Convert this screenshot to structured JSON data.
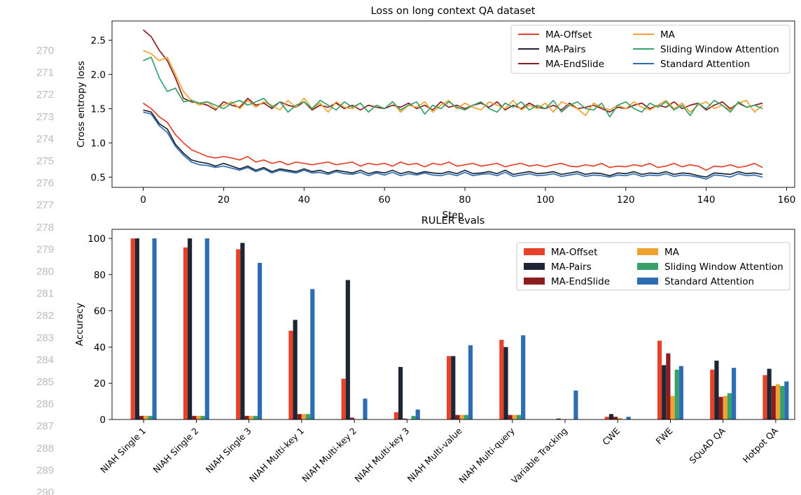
{
  "line_numbers": [
    "270",
    "271",
    "272",
    "273",
    "274",
    "275",
    "276",
    "277",
    "278",
    "279",
    "280",
    "281",
    "282",
    "283",
    "284",
    "285",
    "286",
    "287",
    "288",
    "289",
    "290"
  ],
  "chart_data": [
    {
      "type": "line",
      "title": "Loss on long context QA dataset",
      "xlabel": "Step",
      "ylabel": "Cross entropy loss",
      "xlim": [
        -7.75,
        162
      ],
      "ylim": [
        0.35,
        2.78
      ],
      "xticks": [
        0,
        20,
        40,
        60,
        80,
        100,
        120,
        140,
        160
      ],
      "xtick_labels": [
        "0",
        "20",
        "40",
        "60",
        "80",
        "100",
        "120",
        "140",
        "160"
      ],
      "yticks": [
        0.5,
        1.0,
        1.5,
        2.0,
        2.5
      ],
      "ytick_labels": [
        "0.5",
        "1.0",
        "1.5",
        "2.0",
        "2.5"
      ],
      "grid": false,
      "legend": "top-right",
      "legend_columns": 2,
      "x": [
        0,
        2,
        4,
        6,
        8,
        10,
        12,
        14,
        16,
        18,
        20,
        22,
        24,
        26,
        28,
        30,
        32,
        34,
        36,
        38,
        40,
        42,
        44,
        46,
        48,
        50,
        52,
        54,
        56,
        58,
        60,
        62,
        64,
        66,
        68,
        70,
        72,
        74,
        76,
        78,
        80,
        82,
        84,
        86,
        88,
        90,
        92,
        94,
        96,
        98,
        100,
        102,
        104,
        106,
        108,
        110,
        112,
        114,
        116,
        118,
        120,
        122,
        124,
        126,
        128,
        130,
        132,
        134,
        136,
        138,
        140,
        142,
        144,
        146,
        148,
        150,
        152,
        154
      ],
      "series": [
        {
          "name": "MA-Offset",
          "color": "#e8412a",
          "values": [
            1.58,
            1.5,
            1.38,
            1.3,
            1.12,
            1.0,
            0.9,
            0.85,
            0.8,
            0.78,
            0.8,
            0.78,
            0.75,
            0.8,
            0.72,
            0.75,
            0.7,
            0.73,
            0.68,
            0.72,
            0.7,
            0.68,
            0.7,
            0.72,
            0.68,
            0.7,
            0.72,
            0.66,
            0.7,
            0.68,
            0.7,
            0.66,
            0.72,
            0.68,
            0.7,
            0.65,
            0.7,
            0.68,
            0.72,
            0.66,
            0.68,
            0.7,
            0.66,
            0.68,
            0.7,
            0.65,
            0.68,
            0.7,
            0.66,
            0.68,
            0.65,
            0.68,
            0.7,
            0.66,
            0.65,
            0.68,
            0.66,
            0.7,
            0.64,
            0.66,
            0.65,
            0.68,
            0.66,
            0.7,
            0.64,
            0.66,
            0.7,
            0.65,
            0.68,
            0.66,
            0.6,
            0.66,
            0.65,
            0.68,
            0.64,
            0.66,
            0.7,
            0.64
          ]
        },
        {
          "name": "MA-Pairs",
          "color": "#1c2634",
          "values": [
            1.48,
            1.45,
            1.28,
            1.2,
            0.98,
            0.85,
            0.75,
            0.72,
            0.7,
            0.66,
            0.7,
            0.66,
            0.62,
            0.66,
            0.6,
            0.64,
            0.58,
            0.62,
            0.6,
            0.58,
            0.62,
            0.58,
            0.6,
            0.56,
            0.6,
            0.58,
            0.56,
            0.6,
            0.55,
            0.58,
            0.56,
            0.6,
            0.55,
            0.58,
            0.55,
            0.58,
            0.56,
            0.55,
            0.58,
            0.55,
            0.6,
            0.55,
            0.56,
            0.58,
            0.55,
            0.6,
            0.54,
            0.56,
            0.58,
            0.55,
            0.56,
            0.58,
            0.54,
            0.56,
            0.58,
            0.54,
            0.56,
            0.55,
            0.52,
            0.56,
            0.55,
            0.58,
            0.54,
            0.56,
            0.55,
            0.58,
            0.54,
            0.56,
            0.55,
            0.52,
            0.5,
            0.56,
            0.55,
            0.54,
            0.58,
            0.55,
            0.56,
            0.54
          ]
        },
        {
          "name": "MA-EndSlide",
          "color": "#8b1c1f",
          "values": [
            2.65,
            2.55,
            2.35,
            2.2,
            1.95,
            1.65,
            1.6,
            1.58,
            1.55,
            1.48,
            1.6,
            1.55,
            1.52,
            1.65,
            1.55,
            1.58,
            1.5,
            1.6,
            1.55,
            1.52,
            1.6,
            1.48,
            1.55,
            1.52,
            1.58,
            1.5,
            1.55,
            1.48,
            1.55,
            1.52,
            1.5,
            1.55,
            1.52,
            1.58,
            1.5,
            1.55,
            1.48,
            1.6,
            1.52,
            1.55,
            1.5,
            1.55,
            1.58,
            1.52,
            1.6,
            1.48,
            1.55,
            1.5,
            1.58,
            1.52,
            1.5,
            1.55,
            1.48,
            1.58,
            1.5,
            1.52,
            1.55,
            1.5,
            1.45,
            1.52,
            1.5,
            1.55,
            1.58,
            1.5,
            1.55,
            1.52,
            1.6,
            1.5,
            1.55,
            1.58,
            1.48,
            1.55,
            1.6,
            1.5,
            1.58,
            1.52,
            1.55,
            1.58
          ]
        },
        {
          "name": "MA",
          "color": "#f0a232",
          "values": [
            2.35,
            2.3,
            2.2,
            2.25,
            2.0,
            1.75,
            1.62,
            1.55,
            1.6,
            1.5,
            1.55,
            1.6,
            1.5,
            1.62,
            1.52,
            1.6,
            1.55,
            1.48,
            1.62,
            1.52,
            1.65,
            1.5,
            1.58,
            1.45,
            1.6,
            1.52,
            1.5,
            1.58,
            1.45,
            1.55,
            1.5,
            1.6,
            1.45,
            1.55,
            1.52,
            1.6,
            1.45,
            1.55,
            1.62,
            1.5,
            1.58,
            1.52,
            1.48,
            1.6,
            1.55,
            1.5,
            1.62,
            1.48,
            1.55,
            1.5,
            1.58,
            1.45,
            1.6,
            1.55,
            1.5,
            1.4,
            1.58,
            1.52,
            1.48,
            1.55,
            1.5,
            1.6,
            1.52,
            1.48,
            1.55,
            1.62,
            1.5,
            1.58,
            1.45,
            1.55,
            1.6,
            1.5,
            1.55,
            1.48,
            1.58,
            1.62,
            1.45,
            1.55
          ]
        },
        {
          "name": "Sliding Window Attention",
          "color": "#37a06b",
          "values": [
            2.2,
            2.25,
            1.95,
            1.75,
            1.8,
            1.6,
            1.62,
            1.58,
            1.6,
            1.55,
            1.5,
            1.58,
            1.62,
            1.55,
            1.6,
            1.65,
            1.52,
            1.6,
            1.45,
            1.55,
            1.6,
            1.5,
            1.62,
            1.55,
            1.48,
            1.6,
            1.52,
            1.58,
            1.45,
            1.55,
            1.5,
            1.6,
            1.48,
            1.55,
            1.6,
            1.42,
            1.55,
            1.5,
            1.6,
            1.52,
            1.48,
            1.55,
            1.6,
            1.5,
            1.45,
            1.58,
            1.52,
            1.6,
            1.48,
            1.55,
            1.5,
            1.62,
            1.45,
            1.55,
            1.6,
            1.5,
            1.48,
            1.58,
            1.38,
            1.55,
            1.6,
            1.5,
            1.45,
            1.58,
            1.52,
            1.6,
            1.48,
            1.55,
            1.4,
            1.58,
            1.5,
            1.62,
            1.55,
            1.45,
            1.6,
            1.52,
            1.55,
            1.5
          ]
        },
        {
          "name": "Standard Attention",
          "color": "#2f6db3",
          "values": [
            1.45,
            1.42,
            1.25,
            1.15,
            0.95,
            0.82,
            0.72,
            0.68,
            0.67,
            0.64,
            0.66,
            0.63,
            0.6,
            0.64,
            0.58,
            0.62,
            0.56,
            0.6,
            0.58,
            0.56,
            0.6,
            0.56,
            0.57,
            0.54,
            0.58,
            0.55,
            0.54,
            0.57,
            0.52,
            0.56,
            0.53,
            0.57,
            0.52,
            0.55,
            0.53,
            0.56,
            0.53,
            0.52,
            0.55,
            0.52,
            0.57,
            0.52,
            0.54,
            0.55,
            0.52,
            0.57,
            0.51,
            0.53,
            0.55,
            0.52,
            0.53,
            0.55,
            0.51,
            0.53,
            0.55,
            0.51,
            0.53,
            0.52,
            0.5,
            0.53,
            0.52,
            0.55,
            0.51,
            0.53,
            0.52,
            0.55,
            0.51,
            0.53,
            0.52,
            0.5,
            0.47,
            0.53,
            0.52,
            0.5,
            0.55,
            0.52,
            0.53,
            0.5
          ]
        }
      ]
    },
    {
      "type": "bar",
      "title": "RULER evals",
      "xlabel": "",
      "ylabel": "Accuracy",
      "xlim": [
        -0.6,
        12.36
      ],
      "ylim": [
        0,
        105
      ],
      "yticks": [
        0,
        20,
        40,
        60,
        80,
        100
      ],
      "ytick_labels": [
        "0",
        "20",
        "40",
        "60",
        "80",
        "100"
      ],
      "grid": false,
      "legend": "top-right",
      "legend_columns": 2,
      "categories": [
        "NIAH Single 1",
        "NIAH Single 2",
        "NIAH Single 3",
        "NIAH Multi-key 1",
        "NIAH Multi-key 2",
        "NIAH Multi-key 3",
        "NIAH Multi-value",
        "NIAH Multi-query",
        "Variable Tracking",
        "CWE",
        "FWE",
        "SQuAD QA",
        "Hotpot QA"
      ],
      "series": [
        {
          "name": "MA-Offset",
          "color": "#e8412a",
          "values": [
            100,
            95,
            94,
            49,
            22.5,
            4,
            35,
            44,
            0,
            1.5,
            43.5,
            27.5,
            24.5
          ]
        },
        {
          "name": "MA-Pairs",
          "color": "#1c2634",
          "values": [
            100,
            100,
            97.5,
            55,
            77,
            29,
            35,
            40,
            0.5,
            3,
            30,
            32.5,
            28
          ]
        },
        {
          "name": "MA-EndSlide",
          "color": "#8b1c1f",
          "values": [
            2,
            2,
            2,
            3,
            1,
            0.5,
            2.5,
            2.5,
            0,
            1.5,
            36.5,
            12.5,
            18.5
          ]
        },
        {
          "name": "MA",
          "color": "#f0a232",
          "values": [
            2,
            2,
            2,
            3,
            0,
            0,
            2.5,
            2.5,
            0,
            0.8,
            13,
            13,
            19.5
          ]
        },
        {
          "name": "Sliding Window Attention",
          "color": "#37a06b",
          "values": [
            2,
            2,
            2,
            3,
            0,
            2,
            2.5,
            2.5,
            0,
            0,
            27.5,
            14.5,
            18.5
          ]
        },
        {
          "name": "Standard Attention",
          "color": "#2f6db3",
          "values": [
            100,
            100,
            86.5,
            72,
            11.5,
            5.5,
            41,
            46.5,
            16,
            1.5,
            29.5,
            28.5,
            21
          ]
        }
      ]
    }
  ]
}
